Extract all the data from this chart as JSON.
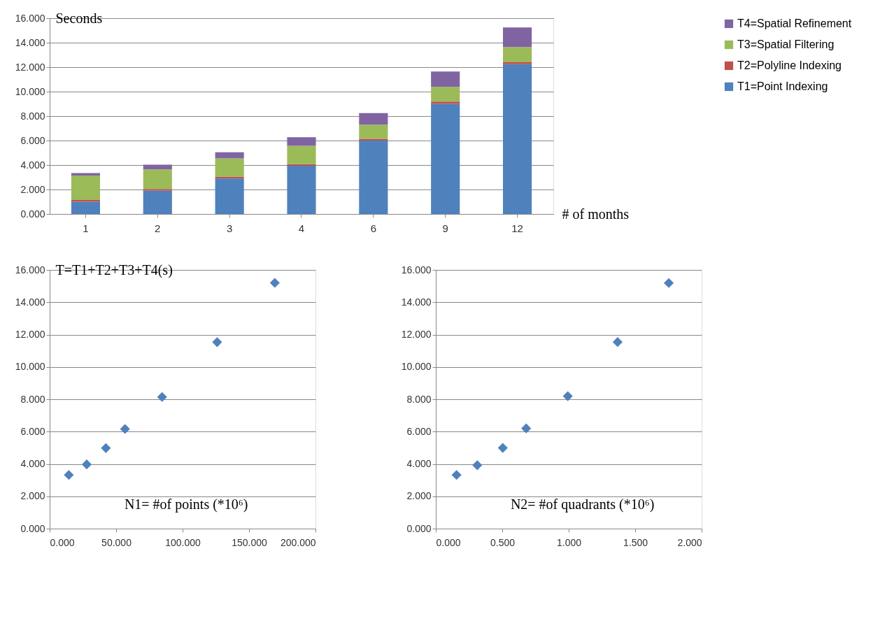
{
  "chart_data": [
    {
      "type": "bar",
      "stacked": true,
      "ylabel": "Seconds",
      "xlabel": "# of months",
      "categories": [
        "1",
        "2",
        "3",
        "4",
        "6",
        "9",
        "12"
      ],
      "series": [
        {
          "name": "T1=Point Indexing",
          "color": "#4f81bd",
          "values": [
            1.0,
            1.9,
            2.9,
            3.95,
            6.0,
            9.0,
            12.25
          ]
        },
        {
          "name": "T2=Polyline Indexing",
          "color": "#c0504d",
          "values": [
            0.15,
            0.15,
            0.15,
            0.12,
            0.15,
            0.18,
            0.15
          ]
        },
        {
          "name": "T3=Spatial Filtering",
          "color": "#9bbb59",
          "values": [
            2.0,
            1.6,
            1.5,
            1.5,
            1.15,
            1.2,
            1.25
          ]
        },
        {
          "name": "T4=Spatial Refinement",
          "color": "#8064a2",
          "values": [
            0.2,
            0.38,
            0.5,
            0.7,
            0.95,
            1.27,
            1.6
          ]
        }
      ],
      "ylim": [
        0,
        16
      ],
      "yticks": [
        {
          "value": 0,
          "label": "0.000"
        },
        {
          "value": 2,
          "label": "2.000"
        },
        {
          "value": 4,
          "label": "4.000"
        },
        {
          "value": 6,
          "label": "6.000"
        },
        {
          "value": 8,
          "label": "8.000"
        },
        {
          "value": 10,
          "label": "10.000"
        },
        {
          "value": 12,
          "label": "12.000"
        },
        {
          "value": 14,
          "label": "14.000"
        },
        {
          "value": 16,
          "label": "16.000"
        }
      ],
      "grid": "y",
      "legend": "right"
    },
    {
      "type": "scatter",
      "ylabel": "T=T1+T2+T3+T4(s)",
      "xlabel": "N1= #of points (*10⁶)",
      "x": [
        14.4,
        27.9,
        42.3,
        56.7,
        84.6,
        126,
        169.4
      ],
      "series": [
        {
          "color": "#4f81bd",
          "values": [
            3.32,
            3.97,
            4.98,
            6.16,
            8.14,
            11.53,
            15.2
          ]
        }
      ],
      "xlim": [
        0,
        200
      ],
      "xticks": [
        {
          "value": 0,
          "label": "0.000"
        },
        {
          "value": 50,
          "label": "50.000"
        },
        {
          "value": 100,
          "label": "100.000"
        },
        {
          "value": 150,
          "label": "150.000"
        },
        {
          "value": 200,
          "label": "200.000"
        }
      ],
      "ylim": [
        0,
        16
      ],
      "yticks": [
        {
          "value": 0,
          "label": "0.000"
        },
        {
          "value": 2,
          "label": "2.000"
        },
        {
          "value": 4,
          "label": "4.000"
        },
        {
          "value": 6,
          "label": "6.000"
        },
        {
          "value": 8,
          "label": "8.000"
        },
        {
          "value": 10,
          "label": "10.000"
        },
        {
          "value": 12,
          "label": "12.000"
        },
        {
          "value": 14,
          "label": "14.000"
        },
        {
          "value": 16,
          "label": "16.000"
        }
      ],
      "grid": "y",
      "marker": "diamond"
    },
    {
      "type": "scatter",
      "xlabel": "N2= #of quadrants (*10⁶)",
      "x": [
        0.156,
        0.312,
        0.504,
        0.68,
        0.993,
        1.368,
        1.753
      ],
      "series": [
        {
          "color": "#4f81bd",
          "values": [
            3.32,
            3.92,
            4.99,
            6.2,
            8.19,
            11.54,
            15.19
          ]
        }
      ],
      "xlim": [
        0,
        2
      ],
      "xticks": [
        {
          "value": 0,
          "label": "0.000"
        },
        {
          "value": 0.5,
          "label": "0.500"
        },
        {
          "value": 1,
          "label": "1.000"
        },
        {
          "value": 1.5,
          "label": "1.500"
        },
        {
          "value": 2,
          "label": "2.000"
        }
      ],
      "ylim": [
        0,
        16
      ],
      "yticks": [
        {
          "value": 0,
          "label": "0.000"
        },
        {
          "value": 2,
          "label": "2.000"
        },
        {
          "value": 4,
          "label": "4.000"
        },
        {
          "value": 6,
          "label": "6.000"
        },
        {
          "value": 8,
          "label": "8.000"
        },
        {
          "value": 10,
          "label": "10.000"
        },
        {
          "value": 12,
          "label": "12.000"
        },
        {
          "value": 14,
          "label": "14.000"
        },
        {
          "value": 16,
          "label": "16.000"
        }
      ],
      "grid": "y",
      "marker": "diamond"
    }
  ]
}
